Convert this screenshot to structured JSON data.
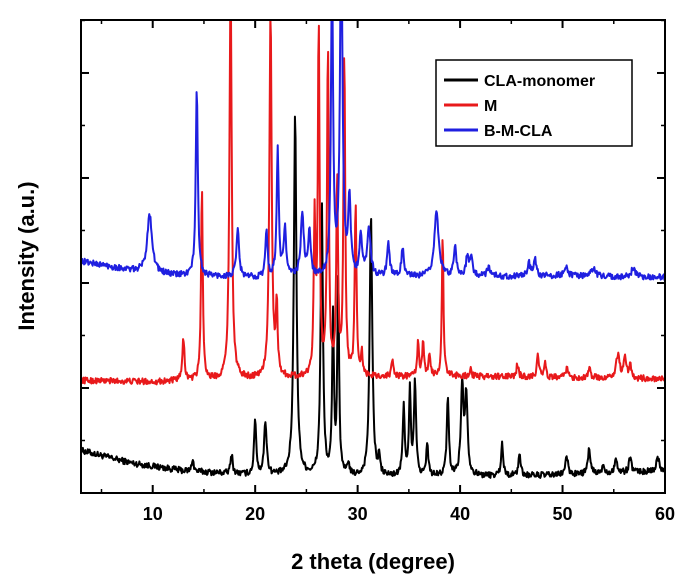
{
  "chart_data": {
    "type": "line",
    "title": "",
    "xlabel": "2 theta (degree)",
    "ylabel": "Intensity (a.u.)",
    "xlim": [
      3,
      60
    ],
    "ylim": [
      0,
      100
    ],
    "xticks": [
      10,
      20,
      30,
      40,
      50,
      60
    ],
    "xtick_labels": [
      "10",
      "20",
      "30",
      "40",
      "50",
      "60"
    ],
    "grid": false,
    "legend_position": "top-right",
    "series": [
      {
        "name": "CLA-monomer",
        "color": "#000000",
        "baseline": [
          [
            3,
            9.0
          ],
          [
            8,
            6.3
          ],
          [
            13,
            4.7
          ],
          [
            20,
            3.7
          ],
          [
            30,
            3.3
          ],
          [
            40,
            3.5
          ],
          [
            50,
            3.8
          ],
          [
            60,
            4.6
          ]
        ],
        "peaks": [
          [
            13.9,
            2.8,
            0.1
          ],
          [
            17.7,
            4.2,
            0.12
          ],
          [
            20.0,
            12.0,
            0.12
          ],
          [
            21.0,
            11.3,
            0.15
          ],
          [
            23.9,
            76.7,
            0.15
          ],
          [
            26.5,
            58.3,
            0.13
          ],
          [
            27.6,
            33.3,
            0.1
          ],
          [
            28.1,
            42.6,
            0.1
          ],
          [
            29.1,
            2.9,
            0.1
          ],
          [
            31.3,
            55.3,
            0.15
          ],
          [
            32.1,
            3.8,
            0.1
          ],
          [
            34.5,
            14.5,
            0.12
          ],
          [
            35.1,
            18.0,
            0.1
          ],
          [
            35.6,
            19.8,
            0.12
          ],
          [
            36.8,
            6.7,
            0.12
          ],
          [
            38.8,
            16.6,
            0.12
          ],
          [
            40.2,
            18.6,
            0.15
          ],
          [
            40.6,
            17.0,
            0.15
          ],
          [
            44.1,
            6.8,
            0.12
          ],
          [
            45.8,
            4.8,
            0.12
          ],
          [
            50.4,
            3.9,
            0.15
          ],
          [
            52.6,
            5.1,
            0.15
          ],
          [
            54.0,
            1.9,
            0.12
          ],
          [
            55.2,
            3.0,
            0.15
          ],
          [
            56.6,
            3.2,
            0.15
          ],
          [
            59.3,
            2.8,
            0.2
          ]
        ]
      },
      {
        "name": "M",
        "color": "#e8191b",
        "baseline": [
          [
            3,
            23.8
          ],
          [
            10,
            23.5
          ],
          [
            20,
            24.1
          ],
          [
            30,
            24.5
          ],
          [
            40,
            24.7
          ],
          [
            50,
            24.4
          ],
          [
            60,
            24.1
          ]
        ],
        "peaks": [
          [
            13.0,
            8.9,
            0.12
          ],
          [
            14.8,
            40.5,
            0.1
          ],
          [
            17.6,
            84.0,
            0.13
          ],
          [
            21.5,
            78.0,
            0.13
          ],
          [
            22.1,
            15.0,
            0.1
          ],
          [
            25.8,
            33.0,
            0.1
          ],
          [
            26.2,
            74.0,
            0.1
          ],
          [
            27.1,
            70.0,
            0.1
          ],
          [
            28.0,
            42.0,
            0.1
          ],
          [
            28.7,
            69.0,
            0.1
          ],
          [
            29.8,
            37.0,
            0.1
          ],
          [
            30.4,
            5.0,
            0.1
          ],
          [
            33.4,
            4.0,
            0.1
          ],
          [
            35.9,
            7.3,
            0.1
          ],
          [
            36.4,
            7.5,
            0.1
          ],
          [
            37.0,
            5.0,
            0.1
          ],
          [
            38.3,
            30.2,
            0.09
          ],
          [
            41.0,
            1.5,
            0.1
          ],
          [
            45.6,
            2.7,
            0.12
          ],
          [
            47.6,
            4.9,
            0.12
          ],
          [
            48.3,
            2.9,
            0.1
          ],
          [
            50.4,
            2.0,
            0.12
          ],
          [
            52.6,
            2.0,
            0.15
          ],
          [
            55.4,
            5.0,
            0.2
          ],
          [
            56.1,
            4.1,
            0.15
          ],
          [
            56.6,
            2.6,
            0.12
          ]
        ]
      },
      {
        "name": "B-M-CLA",
        "color": "#1f1fe0",
        "baseline": [
          [
            3,
            49.0
          ],
          [
            8,
            47.0
          ],
          [
            12,
            46.0
          ],
          [
            20,
            45.5
          ],
          [
            30,
            45.5
          ],
          [
            40,
            45.7
          ],
          [
            50,
            45.9
          ],
          [
            60,
            45.6
          ]
        ],
        "peaks": [
          [
            9.7,
            12.5,
            0.28
          ],
          [
            14.3,
            40.0,
            0.12
          ],
          [
            18.3,
            10.0,
            0.15
          ],
          [
            21.1,
            10.0,
            0.12
          ],
          [
            22.2,
            27.0,
            0.12
          ],
          [
            22.9,
            10.0,
            0.15
          ],
          [
            24.6,
            13.0,
            0.18
          ],
          [
            25.3,
            9.0,
            0.15
          ],
          [
            27.5,
            64.0,
            0.12
          ],
          [
            28.4,
            75.0,
            0.14
          ],
          [
            29.2,
            16.0,
            0.15
          ],
          [
            30.3,
            8.0,
            0.15
          ],
          [
            31.1,
            10.0,
            0.2
          ],
          [
            33.0,
            7.0,
            0.15
          ],
          [
            34.4,
            6.0,
            0.15
          ],
          [
            37.7,
            14.0,
            0.25
          ],
          [
            39.5,
            6.5,
            0.15
          ],
          [
            40.7,
            4.0,
            0.15
          ],
          [
            41.1,
            4.0,
            0.15
          ],
          [
            42.8,
            2.0,
            0.2
          ],
          [
            46.7,
            2.8,
            0.15
          ],
          [
            47.3,
            3.8,
            0.15
          ],
          [
            50.3,
            2.0,
            0.2
          ],
          [
            53.0,
            1.8,
            0.2
          ],
          [
            56.9,
            2.0,
            0.2
          ]
        ]
      }
    ]
  }
}
